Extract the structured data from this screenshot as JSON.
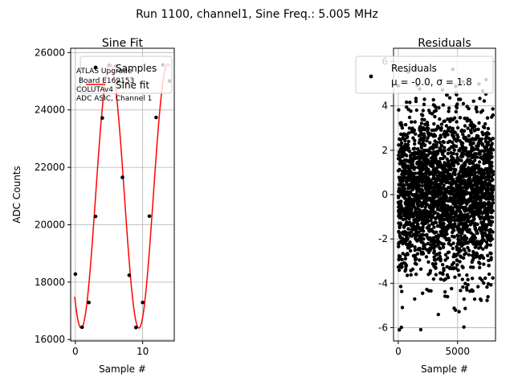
{
  "suptitle": "Run 1100, channel1, Sine Freq.: 5.005 MHz",
  "chart_data": [
    {
      "type": "line",
      "title": "Sine Fit",
      "xlabel": "Sample #",
      "ylabel": "ADC Counts",
      "xlim": [
        -0.7,
        14.7
      ],
      "ylim": [
        15950,
        26150
      ],
      "xticks": [
        0,
        10
      ],
      "yticks": [
        16000,
        18000,
        20000,
        22000,
        24000,
        26000
      ],
      "grid": true,
      "legend_position": "upper-right",
      "annotation": [
        "ATLAS Upgrade",
        " Board E169153",
        "COLUTAv4",
        "ADC ASIC, Channel 1"
      ],
      "series": [
        {
          "name": "Samples",
          "marker": "point",
          "color": "#000000",
          "x": [
            0,
            1,
            2,
            3,
            4,
            5,
            6,
            7,
            8,
            9,
            10,
            11,
            12,
            13,
            14
          ],
          "y": [
            18280,
            16430,
            17290,
            20290,
            23720,
            25560,
            25530,
            21650,
            18240,
            16420,
            17290,
            20300,
            23740,
            25570,
            25010
          ]
        },
        {
          "name": "Sine fit",
          "marker": "line",
          "color": "#ff0000",
          "function": {
            "offset": 21000,
            "amplitude": 4600,
            "period_samples": 8.58,
            "phase_sample": 0.86
          }
        }
      ]
    },
    {
      "type": "scatter",
      "title": "Residuals",
      "xlabel": "Sample #",
      "xlim": [
        -400,
        8200
      ],
      "ylim": [
        -6.6,
        6.6
      ],
      "xticks": [
        0,
        5000
      ],
      "yticks": [
        -6,
        -4,
        -2,
        0,
        2,
        4,
        6
      ],
      "grid": true,
      "legend_position": "upper-right",
      "series": [
        {
          "name": "Residuals",
          "label_stats": "μ = -0.0, σ = 1.8",
          "color": "#000000",
          "n_points": 8000,
          "mean": 0.0,
          "std": 1.8
        }
      ]
    }
  ],
  "colors": {
    "fit_line": "#ff0000",
    "markers": "#000000",
    "grid": "#b0b0b0",
    "legend_border": "#cccccc"
  }
}
